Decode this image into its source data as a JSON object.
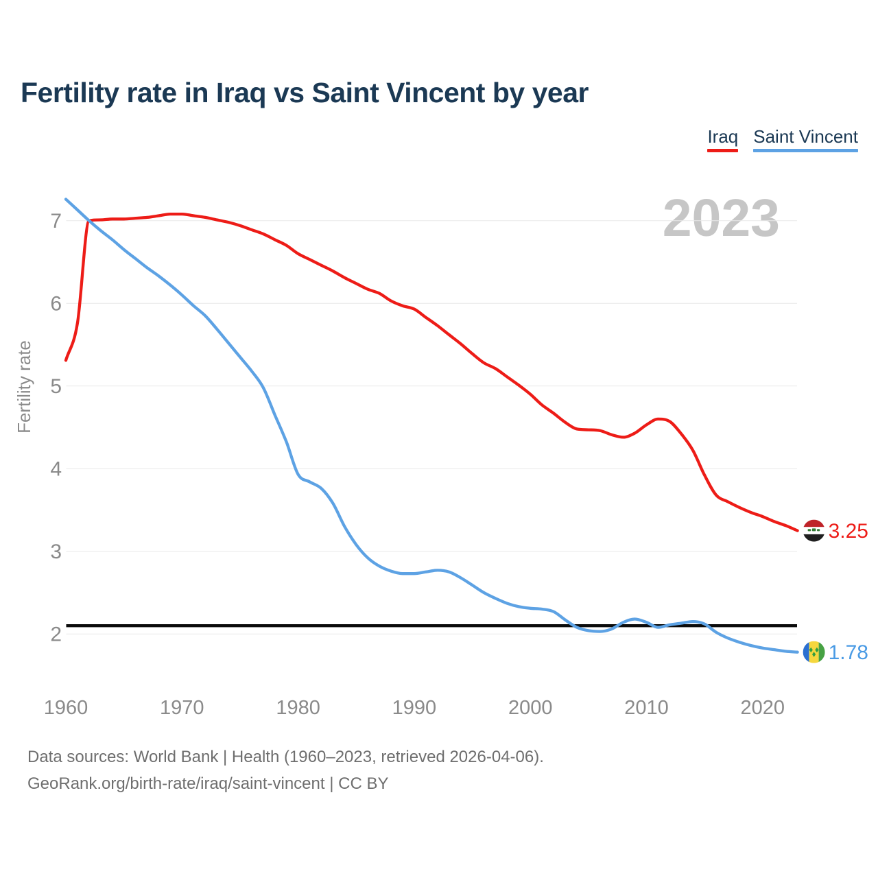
{
  "title": "Fertility rate in Iraq vs Saint Vincent by year",
  "watermark": "2023",
  "legend": [
    {
      "label": "Iraq",
      "color": "#ed1c17"
    },
    {
      "label": "Saint Vincent",
      "color": "#5da2e4"
    }
  ],
  "y_axis": {
    "label": "Fertility rate",
    "ticks": [
      2,
      3,
      4,
      5,
      6,
      7
    ]
  },
  "x_axis": {
    "ticks": [
      1960,
      1970,
      1980,
      1990,
      2000,
      2010,
      2020
    ]
  },
  "reference_line": {
    "value": 2.1,
    "color": "#0b0b0b"
  },
  "end_labels": [
    {
      "series": "Iraq",
      "value": "3.25",
      "color": "#ed1c17"
    },
    {
      "series": "Saint Vincent",
      "value": "1.78",
      "color": "#4a9be5"
    }
  ],
  "footer": {
    "line1": "Data sources: World Bank | Health (1960–2023, retrieved 2026-04-06).",
    "line2": "GeoRank.org/birth-rate/iraq/saint-vincent | CC BY"
  },
  "chart_data": {
    "type": "line",
    "title": "Fertility rate in Iraq vs Saint Vincent by year",
    "xlabel": "",
    "ylabel": "Fertility rate",
    "xlim": [
      1960,
      2023
    ],
    "ylim": [
      1.6,
      7.4
    ],
    "grid": "horizontal-only",
    "legend_position": "top-right",
    "reference_line": 2.1,
    "yticks": [
      2,
      3,
      4,
      5,
      6,
      7
    ],
    "xticks": [
      1960,
      1970,
      1980,
      1990,
      2000,
      2010,
      2020
    ],
    "x": [
      1960,
      1961,
      1962,
      1963,
      1964,
      1965,
      1966,
      1967,
      1968,
      1969,
      1970,
      1971,
      1972,
      1973,
      1974,
      1975,
      1976,
      1977,
      1978,
      1979,
      1980,
      1981,
      1982,
      1983,
      1984,
      1985,
      1986,
      1987,
      1988,
      1989,
      1990,
      1991,
      1992,
      1993,
      1994,
      1995,
      1996,
      1997,
      1998,
      1999,
      2000,
      2001,
      2002,
      2003,
      2004,
      2005,
      2006,
      2007,
      2008,
      2009,
      2010,
      2011,
      2012,
      2013,
      2014,
      2015,
      2016,
      2017,
      2018,
      2019,
      2020,
      2021,
      2022,
      2023
    ],
    "series": [
      {
        "name": "Iraq",
        "color": "#ed1c17",
        "values": [
          5.31,
          5.76,
          7.0,
          7.01,
          7.02,
          7.02,
          7.03,
          7.04,
          7.06,
          7.08,
          7.08,
          7.06,
          7.04,
          7.01,
          6.98,
          6.94,
          6.89,
          6.84,
          6.77,
          6.7,
          6.6,
          6.53,
          6.46,
          6.39,
          6.31,
          6.24,
          6.17,
          6.12,
          6.03,
          5.97,
          5.93,
          5.83,
          5.73,
          5.62,
          5.51,
          5.39,
          5.28,
          5.21,
          5.11,
          5.01,
          4.9,
          4.77,
          4.67,
          4.56,
          4.48,
          4.47,
          4.46,
          4.41,
          4.38,
          4.43,
          4.53,
          4.6,
          4.57,
          4.42,
          4.22,
          3.92,
          3.68,
          3.6,
          3.53,
          3.47,
          3.42,
          3.36,
          3.31,
          3.25
        ]
      },
      {
        "name": "Saint Vincent",
        "color": "#5da2e4",
        "values": [
          7.26,
          7.13,
          7.0,
          6.88,
          6.77,
          6.65,
          6.54,
          6.43,
          6.33,
          6.22,
          6.1,
          5.97,
          5.85,
          5.69,
          5.52,
          5.35,
          5.18,
          4.98,
          4.65,
          4.32,
          3.93,
          3.84,
          3.76,
          3.58,
          3.3,
          3.08,
          2.92,
          2.82,
          2.76,
          2.73,
          2.73,
          2.75,
          2.77,
          2.75,
          2.68,
          2.59,
          2.5,
          2.43,
          2.37,
          2.33,
          2.31,
          2.3,
          2.27,
          2.17,
          2.08,
          2.04,
          2.03,
          2.06,
          2.14,
          2.18,
          2.14,
          2.08,
          2.11,
          2.13,
          2.15,
          2.12,
          2.02,
          1.95,
          1.9,
          1.86,
          1.83,
          1.81,
          1.79,
          1.78
        ]
      }
    ]
  }
}
